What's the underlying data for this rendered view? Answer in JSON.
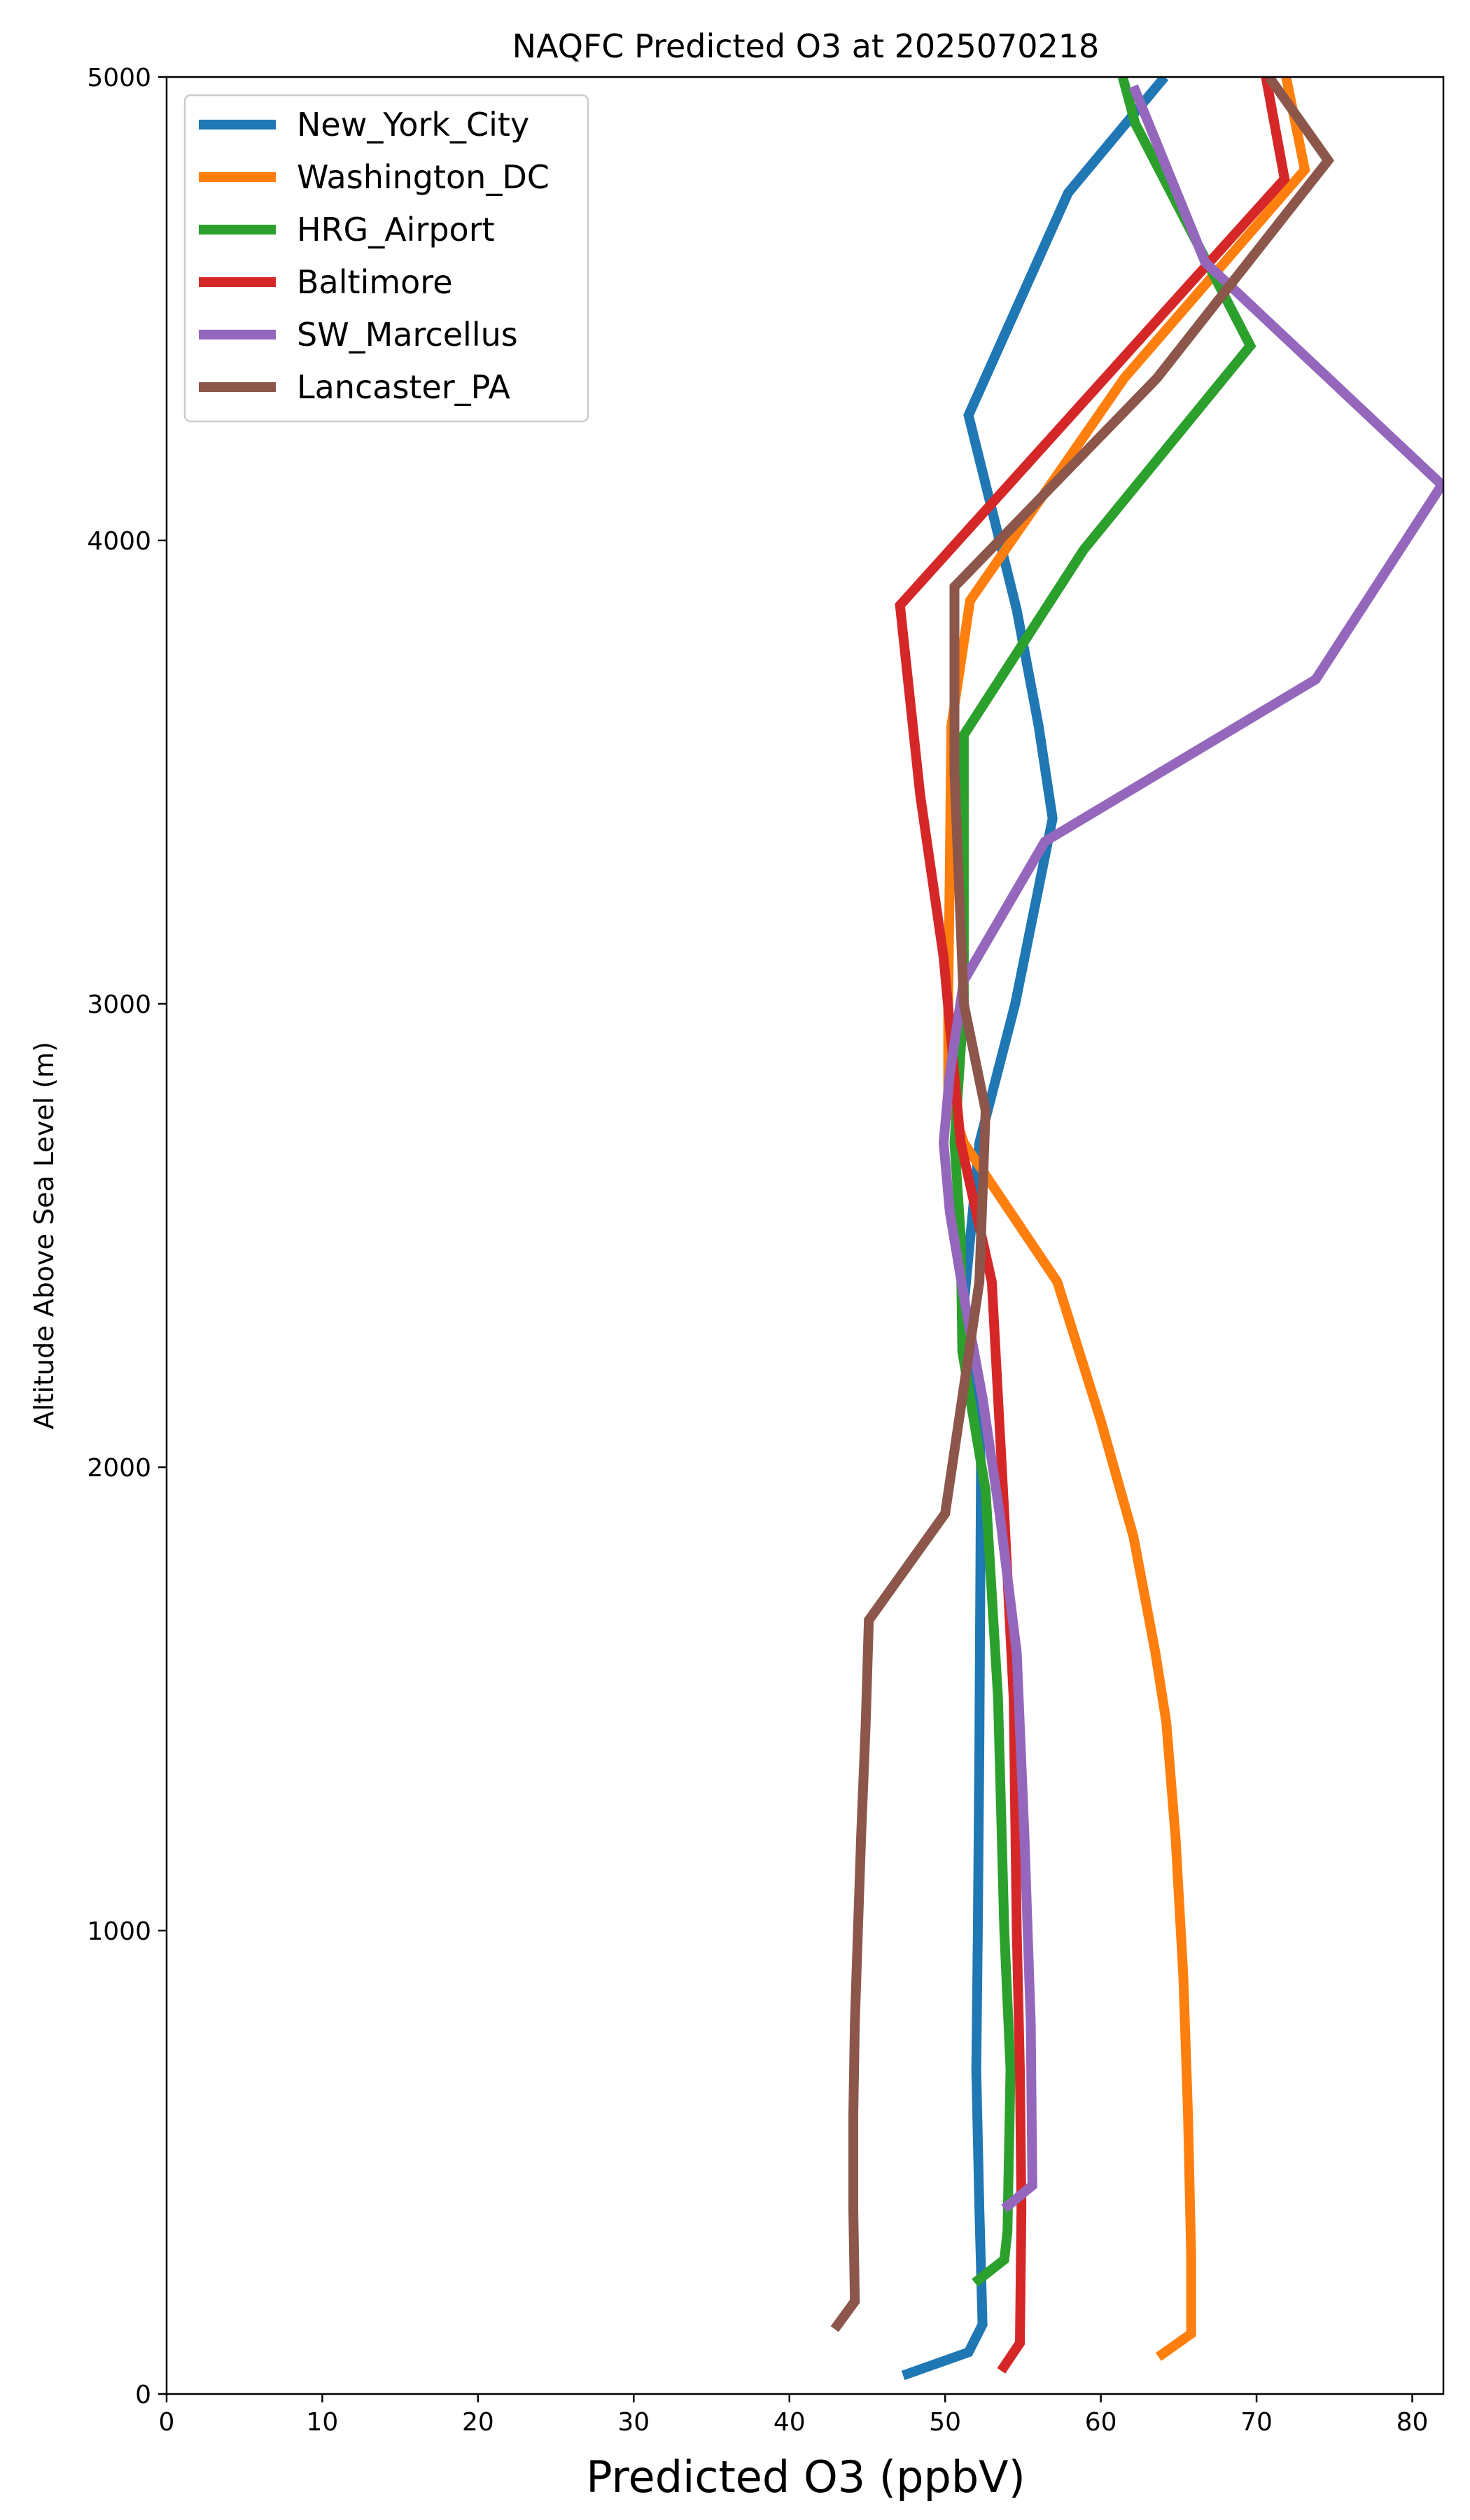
{
  "chart_data": {
    "type": "line",
    "title": "NAQFC Predicted O3 at 2025070218",
    "xlabel": "Predicted O3 (ppbV)",
    "ylabel": "Altitude Above Sea Level (m)",
    "xlim": [
      0,
      82
    ],
    "ylim": [
      0,
      5000
    ],
    "xticks": [
      0,
      10,
      20,
      30,
      40,
      50,
      60,
      70,
      80
    ],
    "yticks": [
      0,
      1000,
      2000,
      3000,
      4000,
      5000
    ],
    "grid": false,
    "legend_position": "top-left",
    "series": [
      {
        "name": "New_York_City",
        "color": "#1f77b4",
        "x": [
          47.3,
          51.5,
          52.4,
          52.2,
          52.0,
          52.1,
          52.2,
          52.3,
          52.1,
          51.2,
          52.2,
          54.5,
          56.9,
          56.0,
          54.6,
          51.5,
          57.9,
          64.1
        ],
        "y": [
          40,
          90,
          150,
          400,
          700,
          1000,
          1400,
          2000,
          2150,
          2350,
          2700,
          3000,
          3400,
          3600,
          3850,
          4270,
          4750,
          5000
        ]
      },
      {
        "name": "Washington_DC",
        "color": "#ff7f0e",
        "x": [
          63.7,
          65.8,
          65.8,
          65.6,
          65.3,
          64.8,
          64.2,
          63.5,
          62.1,
          60.0,
          57.2,
          51.2,
          50.2,
          50.2,
          50.3,
          50.4,
          51.6,
          61.5,
          73.1,
          71.9
        ],
        "y": [
          80,
          130,
          300,
          600,
          900,
          1200,
          1450,
          1600,
          1850,
          2100,
          2400,
          2700,
          2800,
          3000,
          3300,
          3600,
          3870,
          4350,
          4800,
          5000
        ]
      },
      {
        "name": "HRG_Airport",
        "color": "#2ca02c",
        "x": [
          51.9,
          53.8,
          54.0,
          54.2,
          53.8,
          53.4,
          52.6,
          51.1,
          51.0,
          50.6,
          51.2,
          51.2,
          58.9,
          69.6,
          62.2,
          61.4
        ],
        "y": [
          240,
          290,
          350,
          700,
          1000,
          1500,
          1950,
          2250,
          2500,
          2700,
          3000,
          3580,
          3980,
          4420,
          4900,
          5000
        ]
      },
      {
        "name": "Baltimore",
        "color": "#d62728",
        "x": [
          53.6,
          54.8,
          54.9,
          54.8,
          54.6,
          54.4,
          53.8,
          53.0,
          51.0,
          49.9,
          48.4,
          47.1,
          71.8,
          70.6
        ],
        "y": [
          50,
          110,
          400,
          700,
          1000,
          1500,
          1900,
          2400,
          2700,
          3100,
          3450,
          3860,
          4780,
          5000
        ]
      },
      {
        "name": "SW_Marcellus",
        "color": "#9467bd",
        "x": [
          53.8,
          55.6,
          55.5,
          55.1,
          54.6,
          53.5,
          52.4,
          51.3,
          50.3,
          49.9,
          50.3,
          51.2,
          56.4,
          73.8,
          81.9,
          66.7,
          62.1
        ],
        "y": [
          400,
          450,
          800,
          1200,
          1600,
          1900,
          2150,
          2350,
          2550,
          2700,
          2850,
          3050,
          3350,
          3700,
          4120,
          4600,
          4980
        ]
      },
      {
        "name": "Lancaster_PA",
        "color": "#8c564b",
        "x": [
          42.9,
          44.2,
          44.1,
          44.1,
          44.2,
          44.4,
          44.6,
          44.9,
          45.1,
          50.0,
          51.1,
          52.2,
          52.6,
          51.2,
          50.6,
          50.6,
          63.6,
          74.6,
          70.8
        ],
        "y": [
          140,
          200,
          400,
          600,
          800,
          1000,
          1200,
          1450,
          1670,
          1900,
          2150,
          2400,
          2770,
          3000,
          3500,
          3900,
          4350,
          4820,
          5000
        ]
      }
    ]
  }
}
